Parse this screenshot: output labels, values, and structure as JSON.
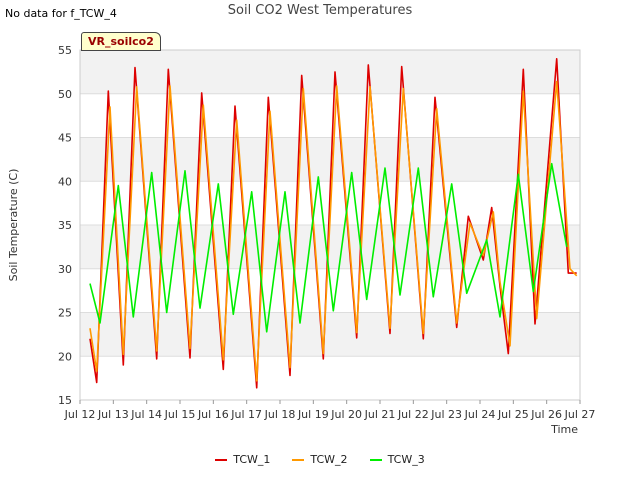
{
  "header": {
    "no_data_text": "No data for f_TCW_4",
    "badge_label": "VR_soilco2"
  },
  "chart_data": {
    "type": "line",
    "title": "Soil CO2 West Temperatures",
    "xlabel": "Time",
    "ylabel": "Soil Temperature (C)",
    "xlim": [
      12,
      27
    ],
    "ylim": [
      15,
      55
    ],
    "x_ticks": [
      "Jul 12",
      "Jul 13",
      "Jul 14",
      "Jul 15",
      "Jul 16",
      "Jul 17",
      "Jul 18",
      "Jul 19",
      "Jul 20",
      "Jul 21",
      "Jul 22",
      "Jul 23",
      "Jul 24",
      "Jul 25",
      "Jul 26",
      "Jul 27"
    ],
    "y_ticks": [
      15,
      20,
      25,
      30,
      35,
      40,
      45,
      50,
      55
    ],
    "grid": true,
    "banded_background": true,
    "legend_position": "bottom",
    "series": [
      {
        "name": "TCW_1",
        "color": "#dd0000",
        "x": [
          12.3,
          12.5,
          12.85,
          13.3,
          13.65,
          14.3,
          14.65,
          15.3,
          15.65,
          16.3,
          16.65,
          17.3,
          17.65,
          18.3,
          18.65,
          19.3,
          19.65,
          20.3,
          20.65,
          21.3,
          21.65,
          22.3,
          22.65,
          23.3,
          23.65,
          24.1,
          24.35,
          24.6,
          24.85,
          25.3,
          25.65,
          26.3,
          26.65,
          26.9
        ],
        "y": [
          22.0,
          17.0,
          50.3,
          19.0,
          53.0,
          19.7,
          52.8,
          19.8,
          50.1,
          18.5,
          48.6,
          16.4,
          49.6,
          17.8,
          52.1,
          19.7,
          52.5,
          22.1,
          53.3,
          22.6,
          53.1,
          22.0,
          49.6,
          23.3,
          36.0,
          31.0,
          37.0,
          28.0,
          20.3,
          52.8,
          23.7,
          54.0,
          29.5,
          29.5
        ]
      },
      {
        "name": "TCW_2",
        "color": "#ff9900",
        "x": [
          12.3,
          12.5,
          12.9,
          13.3,
          13.7,
          14.3,
          14.7,
          15.3,
          15.7,
          16.3,
          16.7,
          17.3,
          17.7,
          18.3,
          18.7,
          19.3,
          19.7,
          20.3,
          20.7,
          21.3,
          21.7,
          22.3,
          22.7,
          23.3,
          23.7,
          24.1,
          24.4,
          24.6,
          24.9,
          25.3,
          25.7,
          26.3,
          26.7,
          26.9
        ],
        "y": [
          23.2,
          18.3,
          48.5,
          20.2,
          50.8,
          20.6,
          50.9,
          20.9,
          48.7,
          19.6,
          47.0,
          17.2,
          48.0,
          18.7,
          50.6,
          20.3,
          50.9,
          22.7,
          50.8,
          23.2,
          50.6,
          22.6,
          48.3,
          23.8,
          35.2,
          31.5,
          36.5,
          28.5,
          21.2,
          50.3,
          24.3,
          51.4,
          30.0,
          29.2
        ]
      },
      {
        "name": "TCW_3",
        "color": "#00ee00",
        "x": [
          12.3,
          12.6,
          13.15,
          13.6,
          14.15,
          14.6,
          15.15,
          15.6,
          16.15,
          16.6,
          17.15,
          17.6,
          18.15,
          18.6,
          19.15,
          19.6,
          20.15,
          20.6,
          21.15,
          21.6,
          22.15,
          22.6,
          23.15,
          23.6,
          24.2,
          24.6,
          25.15,
          25.6,
          26.15,
          26.6
        ],
        "y": [
          28.3,
          23.8,
          39.5,
          24.5,
          41.0,
          25.0,
          41.2,
          25.5,
          39.7,
          24.8,
          38.8,
          22.8,
          38.8,
          23.8,
          40.5,
          25.2,
          41.0,
          26.5,
          41.5,
          27.0,
          41.5,
          26.8,
          39.7,
          27.2,
          33.3,
          24.5,
          40.8,
          27.4,
          42.0,
          32.5
        ]
      }
    ]
  }
}
